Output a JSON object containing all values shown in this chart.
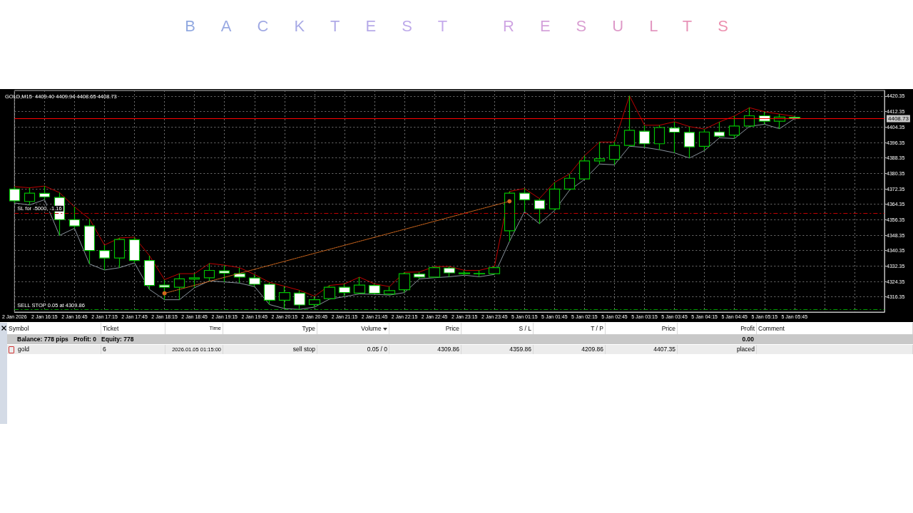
{
  "chart_data": {
    "type": "candlestick",
    "title": "BACKTEST RESULTS",
    "subtitle": "GOLD,M15  4409.40 4409.94 4408.65 4408.73",
    "categories": [
      "2 Jan 2026",
      null,
      "2 Jan 16:15",
      null,
      "2 Jan 16:45",
      null,
      "2 Jan 17:15",
      null,
      "2 Jan 17:45",
      null,
      "2 Jan 18:15",
      null,
      "2 Jan 18:45",
      null,
      "2 Jan 19:15",
      null,
      "2 Jan 19:45",
      null,
      "2 Jan 20:15",
      null,
      "2 Jan 20:45",
      null,
      "2 Jan 21:15",
      null,
      "2 Jan 21:45",
      null,
      "2 Jan 22:15",
      null,
      "2 Jan 22:45",
      null,
      "2 Jan 23:15",
      null,
      "2 Jan 23:45",
      null,
      "5 Jan 01:15",
      null,
      "5 Jan 01:45",
      null,
      "5 Jan 02:15",
      null,
      "5 Jan 02:45",
      null,
      "5 Jan 03:15",
      null,
      "5 Jan 03:45",
      null,
      "5 Jan 04:15",
      null,
      "5 Jan 04:45",
      null,
      "5 Jan 05:15",
      null,
      "5 Jan 05:45",
      null,
      null,
      null,
      null,
      null,
      null
    ],
    "ohlc": [
      [
        4372.2,
        4373.5,
        4365.0,
        4366.1
      ],
      [
        4365.8,
        4372.9,
        4364.0,
        4370.1
      ],
      [
        4370.0,
        4373.8,
        4366.7,
        4368.2
      ],
      [
        4367.9,
        4370.4,
        4348.2,
        4356.4
      ],
      [
        4356.4,
        4363.0,
        4351.9,
        4353.1
      ],
      [
        4353.1,
        4356.8,
        4333.4,
        4340.4
      ],
      [
        4340.4,
        4343.2,
        4330.3,
        4336.5
      ],
      [
        4336.5,
        4346.9,
        4331.5,
        4346.1
      ],
      [
        4346.0,
        4347.3,
        4334.0,
        4335.2
      ],
      [
        4335.2,
        4337.7,
        4320.2,
        4322.3
      ],
      [
        4322.5,
        4325.3,
        4314.9,
        4321.4
      ],
      [
        4321.4,
        4328.4,
        4314.9,
        4325.7
      ],
      [
        4325.6,
        4328.4,
        4321.1,
        4326.3
      ],
      [
        4326.3,
        4333.7,
        4324.7,
        4330.1
      ],
      [
        4329.9,
        4332.8,
        4324.1,
        4328.7
      ],
      [
        4328.4,
        4331.5,
        4323.5,
        4326.6
      ],
      [
        4326.2,
        4328.0,
        4321.7,
        4322.9
      ],
      [
        4322.9,
        4323.9,
        4312.4,
        4314.6
      ],
      [
        4314.6,
        4321.9,
        4310.3,
        4318.6
      ],
      [
        4318.3,
        4319.8,
        4309.9,
        4312.2
      ],
      [
        4312.4,
        4316.7,
        4311.1,
        4314.9
      ],
      [
        4315.5,
        4322.3,
        4315.2,
        4321.4
      ],
      [
        4321.4,
        4323.1,
        4316.5,
        4318.6
      ],
      [
        4318.3,
        4326.6,
        4317.9,
        4322.5
      ],
      [
        4322.3,
        4323.1,
        4317.7,
        4318.2
      ],
      [
        4317.9,
        4321.7,
        4317.3,
        4319.6
      ],
      [
        4320.1,
        4329.1,
        4318.6,
        4328.4
      ],
      [
        4328.2,
        4329.3,
        4325.7,
        4326.6
      ],
      [
        4326.6,
        4332.1,
        4326.3,
        4331.5
      ],
      [
        4331.3,
        4332.1,
        4326.8,
        4328.8
      ],
      [
        4328.4,
        4330.1,
        4327.6,
        4328.8
      ],
      [
        4328.3,
        4330.1,
        4326.8,
        4328.5
      ],
      [
        4328.4,
        4332.1,
        4328.0,
        4331.5
      ],
      [
        4350.6,
        4371.0,
        4345.1,
        4370.1
      ],
      [
        4370.1,
        4372.5,
        4360.5,
        4366.7
      ],
      [
        4366.4,
        4367.3,
        4354.3,
        4362.0
      ],
      [
        4362.0,
        4375.7,
        4361.1,
        4372.2
      ],
      [
        4372.2,
        4380.0,
        4371.6,
        4377.8
      ],
      [
        4377.5,
        4389.5,
        4377.2,
        4386.8
      ],
      [
        4386.8,
        4396.6,
        4385.2,
        4387.9
      ],
      [
        4387.6,
        4396.6,
        4384.8,
        4394.8
      ],
      [
        4394.8,
        4420.6,
        4394.4,
        4402.7
      ],
      [
        4402.2,
        4405.3,
        4393.8,
        4395.7
      ],
      [
        4395.7,
        4405.3,
        4392.6,
        4404.1
      ],
      [
        4403.9,
        4407.1,
        4391.0,
        4401.7
      ],
      [
        4401.6,
        4404.6,
        4388.3,
        4394.1
      ],
      [
        4394.4,
        4403.3,
        4392.2,
        4401.8
      ],
      [
        4401.8,
        4407.0,
        4398.8,
        4399.6
      ],
      [
        4400.2,
        4410.1,
        4398.4,
        4404.9
      ],
      [
        4404.9,
        4414.4,
        4404.7,
        4410.2
      ],
      [
        4410.2,
        4412.3,
        4405.8,
        4407.4
      ],
      [
        4407.4,
        4411.1,
        4403.5,
        4409.5
      ],
      [
        4409.4,
        4409.94,
        4408.65,
        4408.73
      ],
      null,
      null,
      null,
      null,
      null,
      null
    ],
    "series": [
      {
        "type": "line",
        "color": "#c00000",
        "values": [
          4373.5,
          4372.9,
          4373.8,
          4370.4,
          4363.0,
          4356.8,
          4343.2,
          4346.9,
          4347.3,
          4337.7,
          4325.3,
          4328.4,
          4328.4,
          4333.7,
          4332.8,
          4331.5,
          4328.0,
          4323.9,
          4321.9,
          4319.8,
          4316.7,
          4322.3,
          4323.1,
          4326.6,
          4323.1,
          4321.7,
          4329.1,
          4329.3,
          4332.1,
          4332.1,
          4330.1,
          4330.1,
          4332.1,
          4371.0,
          4372.5,
          4367.3,
          4375.7,
          4380.0,
          4389.5,
          4396.6,
          4396.6,
          4420.6,
          4405.3,
          4405.3,
          4407.1,
          4404.6,
          4403.3,
          4407.0,
          4410.1,
          4414.4,
          4412.3,
          4411.1,
          4409.9,
          null,
          null,
          null,
          null,
          null,
          null
        ]
      },
      {
        "type": "line",
        "color": "#8a949e",
        "values": [
          4365.0,
          4364.0,
          4366.7,
          4348.2,
          4351.9,
          4333.4,
          4330.3,
          4331.5,
          4334.0,
          4320.2,
          4314.9,
          4314.9,
          4321.1,
          4324.7,
          4324.1,
          4323.5,
          4321.7,
          4312.4,
          4310.3,
          4309.9,
          4311.1,
          4315.2,
          4316.5,
          4317.9,
          4317.7,
          4317.3,
          4318.6,
          4325.7,
          4326.3,
          4326.8,
          4327.6,
          4326.8,
          4328.0,
          4345.1,
          4360.5,
          4354.3,
          4361.1,
          4371.6,
          4377.2,
          4385.2,
          4384.8,
          4394.4,
          4393.8,
          4392.6,
          4391.0,
          4388.3,
          4392.2,
          4398.8,
          4398.4,
          4404.7,
          4405.8,
          4403.5,
          4408.7,
          null,
          null,
          null,
          null,
          null,
          null
        ]
      },
      {
        "type": "line",
        "color": "#d2691e",
        "line_style": "dotted",
        "marker": "circle",
        "values": [
          null,
          null,
          null,
          null,
          null,
          null,
          null,
          null,
          null,
          null,
          4318.2,
          null,
          null,
          null,
          null,
          null,
          null,
          null,
          null,
          null,
          null,
          null,
          null,
          null,
          null,
          null,
          null,
          null,
          null,
          null,
          null,
          null,
          null,
          4365.9,
          null,
          null,
          null,
          null,
          null,
          null,
          null,
          null,
          null,
          null,
          null,
          null,
          null,
          null,
          null,
          null,
          null,
          null,
          null,
          null,
          null,
          null,
          null,
          null,
          null
        ]
      }
    ],
    "ylim": [
      4308.5,
      4423.3
    ],
    "yticks": [
      4316.35,
      4324.35,
      4332.35,
      4340.35,
      4348.35,
      4356.35,
      4364.35,
      4372.35,
      4380.35,
      4388.35,
      4396.35,
      4404.35,
      4412.35,
      4420.35
    ],
    "ref_lines": [
      {
        "axis": "y",
        "value": 4408.73,
        "label": "4408.73",
        "color": "#ff0000",
        "line_style": "solid"
      },
      {
        "axis": "y",
        "value": 4359.86,
        "label": "SL for -5000, -1.16",
        "color": "#c00000",
        "line_style": "dashed"
      },
      {
        "axis": "y",
        "value": 4309.86,
        "label": "SELL STOP 0.05 at 4309.86",
        "color": "#00a000",
        "line_style": "dashed"
      }
    ],
    "grid": true,
    "annotations": [
      "Symbol",
      "Ticket",
      "Time",
      "Type",
      "Volume",
      "Price",
      "S / L",
      "T / P",
      "Price",
      "Profit",
      "Comment",
      "Balance: 778 pips   Profit: 0   Equity: 778",
      "0.00",
      "gold",
      "6",
      "2026.01.05 01:15:00",
      "sell stop",
      "0.05 / 0",
      "4309.86",
      "4359.86",
      "4209.86",
      "4407.35",
      "placed"
    ]
  }
}
